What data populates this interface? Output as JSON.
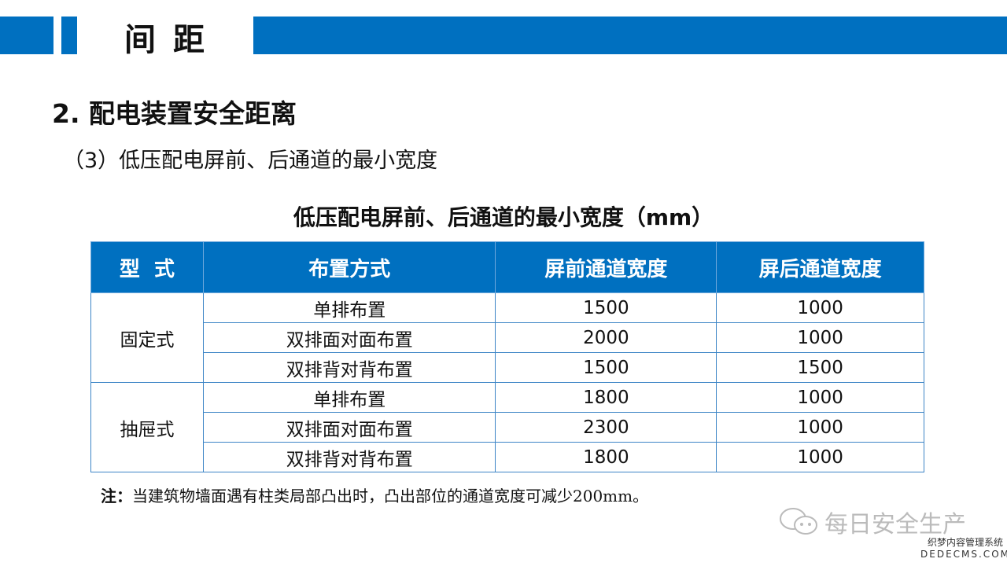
{
  "header": {
    "title": "间距",
    "accent": "#0070C0"
  },
  "heading": "2. 配电装置安全距离",
  "subheading": "（3）低压配电屏前、后通道的最小宽度",
  "table": {
    "caption": "低压配电屏前、后通道的最小宽度（mm）",
    "columns": [
      "型  式",
      "布置方式",
      "屏前通道宽度",
      "屏后通道宽度"
    ],
    "groups": [
      {
        "type": "固定式",
        "rows": [
          [
            "单排布置",
            "1500",
            "1000"
          ],
          [
            "双排面对面布置",
            "2000",
            "1000"
          ],
          [
            "双排背对背布置",
            "1500",
            "1500"
          ]
        ]
      },
      {
        "type": "抽屉式",
        "rows": [
          [
            "单排布置",
            "1800",
            "1000"
          ],
          [
            "双排面对面布置",
            "2300",
            "1000"
          ],
          [
            "双排背对背布置",
            "1800",
            "1000"
          ]
        ]
      }
    ]
  },
  "note": {
    "label": "注：",
    "text": "当建筑物墙面遇有柱类局部凸出时，凸出部位的通道宽度可减少200mm。"
  },
  "watermark": {
    "text": "每日安全生产",
    "site_cn": "织梦内容管理系统",
    "site_en": "DEDECMS.COM"
  }
}
